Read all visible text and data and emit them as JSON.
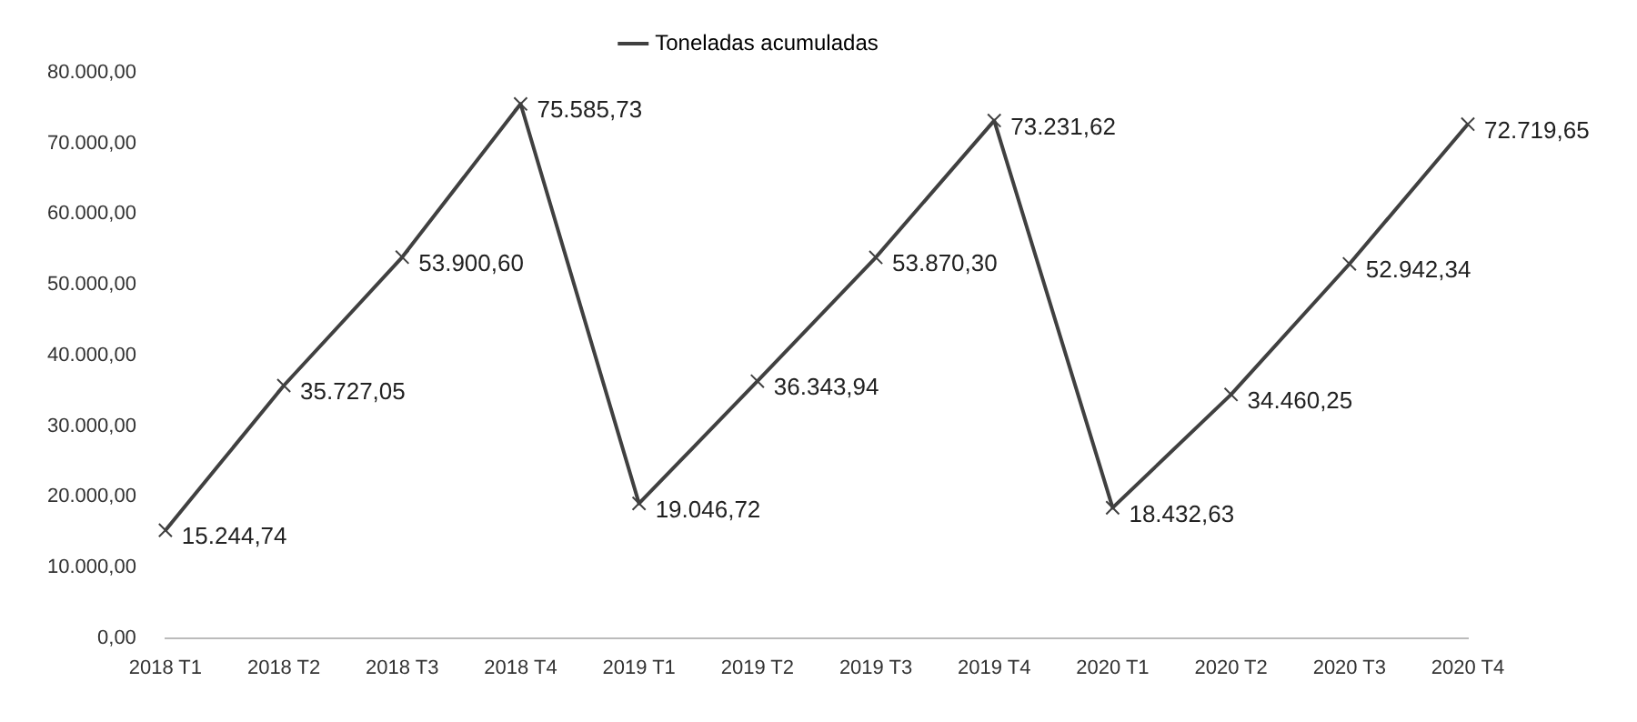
{
  "chart_data": {
    "type": "line",
    "categories": [
      "2018 T1",
      "2018 T2",
      "2018 T3",
      "2018 T4",
      "2019 T1",
      "2019 T2",
      "2019 T3",
      "2019 T4",
      "2020 T1",
      "2020 T2",
      "2020 T3",
      "2020 T4"
    ],
    "series": [
      {
        "name": "Toneladas acumuladas",
        "color": "#404040",
        "values": [
          15244.74,
          35727.05,
          53900.6,
          75585.73,
          19046.72,
          36343.94,
          53870.3,
          73231.62,
          18432.63,
          34460.25,
          52942.34,
          72719.65
        ],
        "value_labels": [
          "15.244,74",
          "35.727,05",
          "53.900,60",
          "75.585,73",
          "19.046,72",
          "36.343,94",
          "53.870,30",
          "73.231,62",
          "18.432,63",
          "34.460,25",
          "52.942,34",
          "72.719,65"
        ]
      }
    ],
    "ylim": [
      0,
      80000
    ],
    "yticks": [
      {
        "value": 0,
        "label": "0,00"
      },
      {
        "value": 10000,
        "label": "10.000,00"
      },
      {
        "value": 20000,
        "label": "20.000,00"
      },
      {
        "value": 30000,
        "label": "30.000,00"
      },
      {
        "value": 40000,
        "label": "40.000,00"
      },
      {
        "value": 50000,
        "label": "50.000,00"
      },
      {
        "value": 60000,
        "label": "60.000,00"
      },
      {
        "value": 70000,
        "label": "70.000,00"
      },
      {
        "value": 80000,
        "label": "80.000,00"
      }
    ],
    "grid": false,
    "legend": "top",
    "marker": "cross",
    "line_style": "solid"
  }
}
